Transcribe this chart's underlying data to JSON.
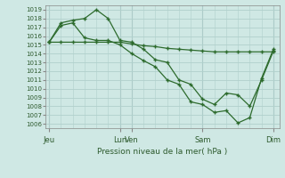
{
  "background_color": "#cfe8e4",
  "grid_color": "#b0d0cc",
  "line_color": "#2d6b2d",
  "marker_color": "#2d6b2d",
  "xlabel": "Pression niveau de la mer( hPa )",
  "ylim": [
    1005.5,
    1019.5
  ],
  "yticks": [
    1006,
    1007,
    1008,
    1009,
    1010,
    1011,
    1012,
    1013,
    1014,
    1015,
    1016,
    1017,
    1018,
    1019
  ],
  "xtick_labels": [
    "Jeu",
    "Lun",
    "Ven",
    "Sam",
    "Dim"
  ],
  "xtick_positions": [
    0,
    6,
    7,
    13,
    19
  ],
  "xlim": [
    -0.3,
    19.5
  ],
  "n_points": 20,
  "line1_x": [
    0,
    1,
    2,
    3,
    4,
    5,
    6,
    7,
    8,
    9,
    10,
    11,
    12,
    13,
    14,
    15,
    16,
    17,
    18,
    19
  ],
  "line1_y": [
    1015.3,
    1015.3,
    1015.3,
    1015.3,
    1015.3,
    1015.3,
    1015.3,
    1015.1,
    1014.9,
    1014.8,
    1014.6,
    1014.5,
    1014.4,
    1014.3,
    1014.2,
    1014.2,
    1014.2,
    1014.2,
    1014.2,
    1014.2
  ],
  "line2_x": [
    0,
    1,
    2,
    3,
    4,
    5,
    6,
    7,
    8,
    9,
    10,
    11,
    12,
    13,
    14,
    15,
    16,
    17,
    18,
    19
  ],
  "line2_y": [
    1015.3,
    1017.5,
    1017.8,
    1018.0,
    1019.0,
    1018.0,
    1015.5,
    1015.3,
    1014.5,
    1013.3,
    1013.0,
    1011.0,
    1010.5,
    1008.8,
    1008.2,
    1009.5,
    1009.3,
    1008.0,
    1011.0,
    1014.3
  ],
  "line3_x": [
    0,
    1,
    2,
    3,
    4,
    5,
    6,
    7,
    8,
    9,
    10,
    11,
    12,
    13,
    14,
    15,
    16,
    17,
    18,
    19
  ],
  "line3_y": [
    1015.3,
    1017.2,
    1017.5,
    1015.8,
    1015.5,
    1015.5,
    1015.0,
    1014.0,
    1013.2,
    1012.5,
    1011.0,
    1010.5,
    1008.5,
    1008.2,
    1007.3,
    1007.5,
    1006.1,
    1006.7,
    1011.2,
    1014.5
  ]
}
